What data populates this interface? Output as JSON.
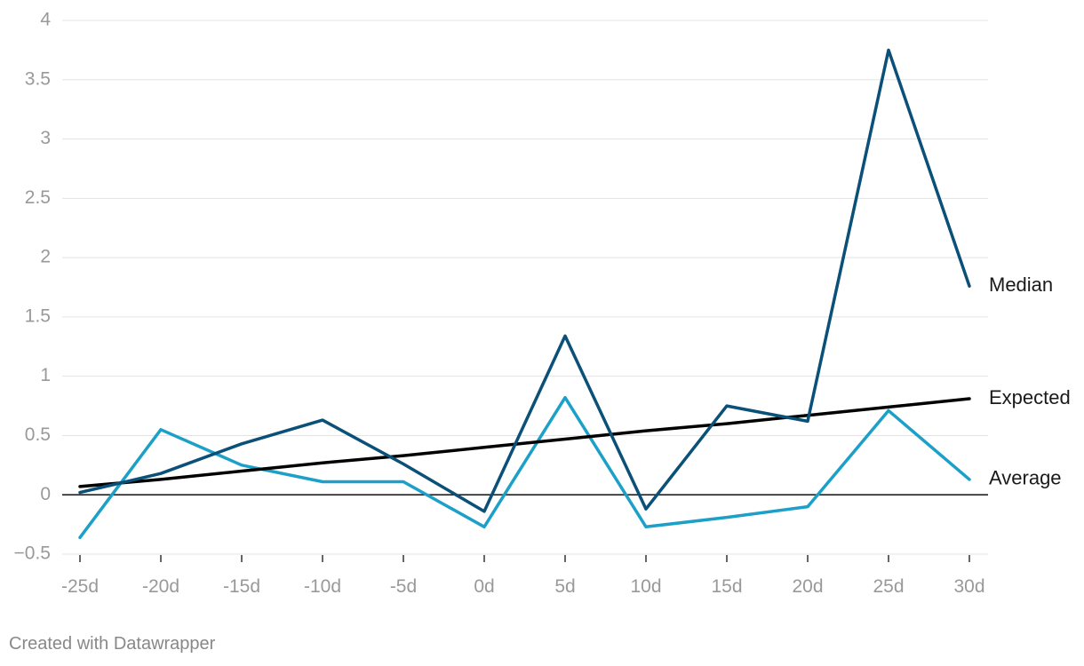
{
  "chart_data": {
    "type": "line",
    "x": [
      "-25d",
      "-20d",
      "-15d",
      "-10d",
      "-5d",
      "0d",
      "5d",
      "10d",
      "15d",
      "20d",
      "25d",
      "30d"
    ],
    "ylim": [
      -0.5,
      4
    ],
    "yticks": [
      -0.5,
      0,
      0.5,
      1,
      1.5,
      2,
      2.5,
      3,
      3.5,
      4
    ],
    "ytick_labels": [
      "−0.5",
      "0",
      "0.5",
      "1",
      "1.5",
      "2",
      "2.5",
      "3",
      "3.5",
      "4"
    ],
    "grid": true,
    "legend": "direct labels at right end of lines",
    "series": [
      {
        "name": "Median",
        "color": "#0a5078",
        "values": [
          0.02,
          0.18,
          0.43,
          0.63,
          0.26,
          -0.14,
          1.34,
          -0.12,
          0.75,
          0.62,
          3.75,
          1.76
        ]
      },
      {
        "name": "Expected",
        "color": "#000000",
        "values": [
          0.07,
          0.13,
          0.2,
          0.27,
          0.33,
          0.4,
          0.47,
          0.54,
          0.6,
          0.67,
          0.74,
          0.81
        ]
      },
      {
        "name": "Average",
        "color": "#1ca0c8",
        "values": [
          -0.36,
          0.55,
          0.25,
          0.11,
          0.11,
          -0.27,
          0.82,
          -0.27,
          -0.19,
          -0.1,
          0.71,
          0.13
        ]
      }
    ]
  },
  "footer": {
    "credit": "Created with Datawrapper"
  }
}
